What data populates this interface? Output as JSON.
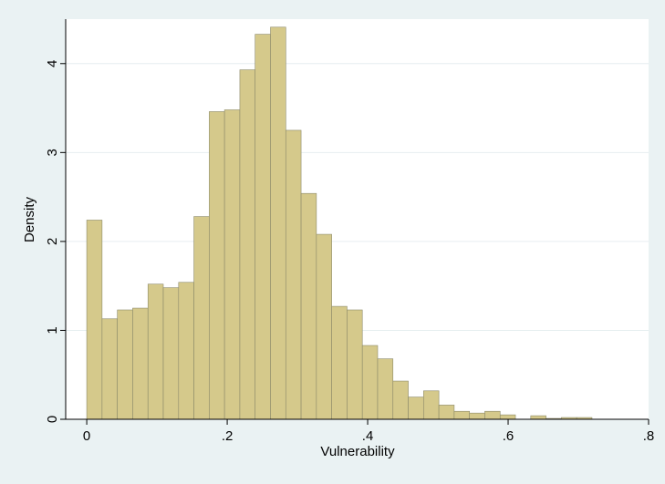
{
  "chart_data": {
    "type": "bar",
    "subtype": "histogram",
    "xlabel": "Vulnerability",
    "ylabel": "Density",
    "xlim": [
      -0.03,
      0.8
    ],
    "ylim": [
      0,
      4.5
    ],
    "xticks": [
      {
        "value": 0,
        "label": "0"
      },
      {
        "value": 0.2,
        "label": ".2"
      },
      {
        "value": 0.4,
        "label": ".4"
      },
      {
        "value": 0.6,
        "label": ".6"
      },
      {
        "value": 0.8,
        "label": ".8"
      }
    ],
    "yticks": [
      {
        "value": 0,
        "label": "0"
      },
      {
        "value": 1,
        "label": "1"
      },
      {
        "value": 2,
        "label": "2"
      },
      {
        "value": 3,
        "label": "3"
      },
      {
        "value": 4,
        "label": "4"
      }
    ],
    "grid": true,
    "bin_start": 0,
    "bin_width": 0.0218,
    "values": [
      2.24,
      1.13,
      1.23,
      1.25,
      1.52,
      1.48,
      1.54,
      2.28,
      3.46,
      3.48,
      3.93,
      4.33,
      4.41,
      3.25,
      2.54,
      2.08,
      1.27,
      1.23,
      0.83,
      0.68,
      0.43,
      0.25,
      0.32,
      0.16,
      0.09,
      0.07,
      0.09,
      0.05,
      0.0,
      0.04,
      0.01,
      0.02,
      0.02,
      0.0
    ],
    "colors": {
      "bar_fill": "#d5c98b",
      "bar_edge": "#8c8a6a",
      "background": "#eaf2f3",
      "plot_bg": "#ffffff"
    }
  }
}
